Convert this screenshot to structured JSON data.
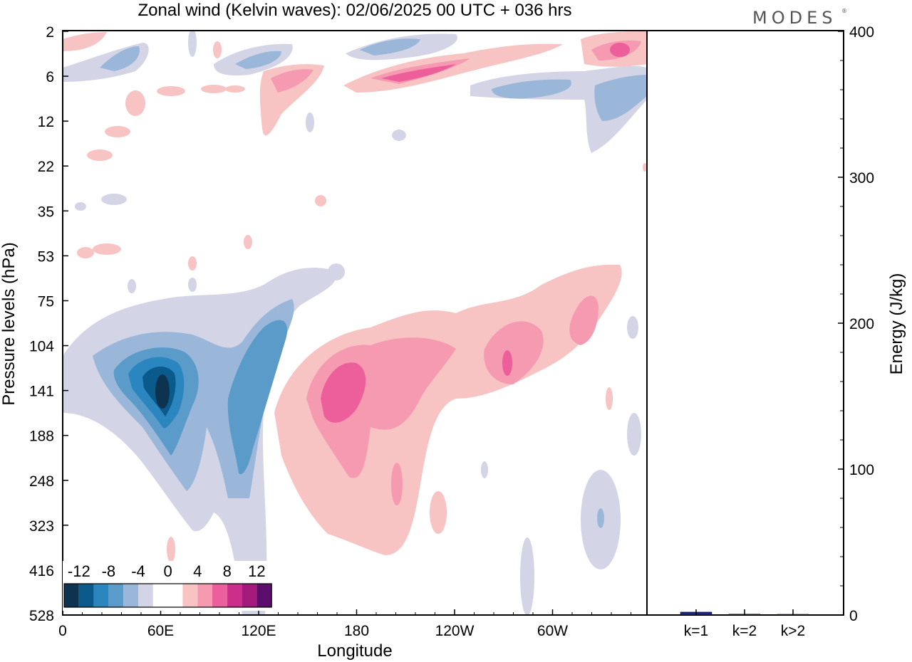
{
  "title": "Zonal wind (Kelvin waves):  02/06/2025  00 UTC  + 036 hrs",
  "logo": "MODES",
  "logo_mark": "®",
  "colors": {
    "neg12": "#0d3350",
    "neg10": "#0a5a8c",
    "neg8": "#2b85be",
    "neg6": "#5b9bc9",
    "neg4": "#9ab6d8",
    "neg2": "#d3d5e6",
    "pos2": "#f7c3c3",
    "pos4": "#f59ab0",
    "pos6": "#ec5f9b",
    "pos8": "#cc2e8c",
    "pos10": "#a31a7c",
    "pos12": "#5c0e6c",
    "bar": "#1a237e"
  },
  "chart_data": [
    {
      "type": "heatmap",
      "title": "Zonal wind (Kelvin waves):  02/06/2025  00 UTC  + 036 hrs",
      "xlabel": "Longitude",
      "ylabel": "Pressure levels (hPa)",
      "x_ticks": [
        "0",
        "60E",
        "120E",
        "180",
        "120W",
        "60W"
      ],
      "y_ticks": [
        "2",
        "6",
        "12",
        "22",
        "35",
        "53",
        "75",
        "104",
        "141",
        "188",
        "248",
        "323",
        "416",
        "528"
      ],
      "legend": {
        "labels": [
          "-12",
          "-8",
          "-4",
          "0",
          "4",
          "8",
          "12"
        ],
        "levels": [
          -12,
          -10,
          -8,
          -6,
          -4,
          -2,
          0,
          2,
          4,
          6,
          8,
          10,
          12
        ]
      },
      "features": [
        {
          "region": "~40E-70E, 104-248 hPa",
          "min_value": -12
        },
        {
          "region": "~100E-125E, 75-248 hPa",
          "min_value": -6
        },
        {
          "region": "~160E-180, 104-248 hPa",
          "max_value": 8
        },
        {
          "region": "~80W-70W, 104-188 hPa",
          "max_value": 8
        },
        {
          "region": "~170W-120W, 6 hPa",
          "max_value": 8
        },
        {
          "region": "~30W-20W, 2-6 hPa",
          "max_value": 8
        }
      ]
    },
    {
      "type": "bar",
      "categories": [
        "k=1",
        "k=2",
        "k>2"
      ],
      "values": [
        2,
        0.6,
        0.5
      ],
      "ylabel": "Energy (J/kg)",
      "ylim": [
        0,
        400
      ],
      "y_ticks": [
        "0",
        "100",
        "200",
        "300",
        "400"
      ]
    }
  ]
}
